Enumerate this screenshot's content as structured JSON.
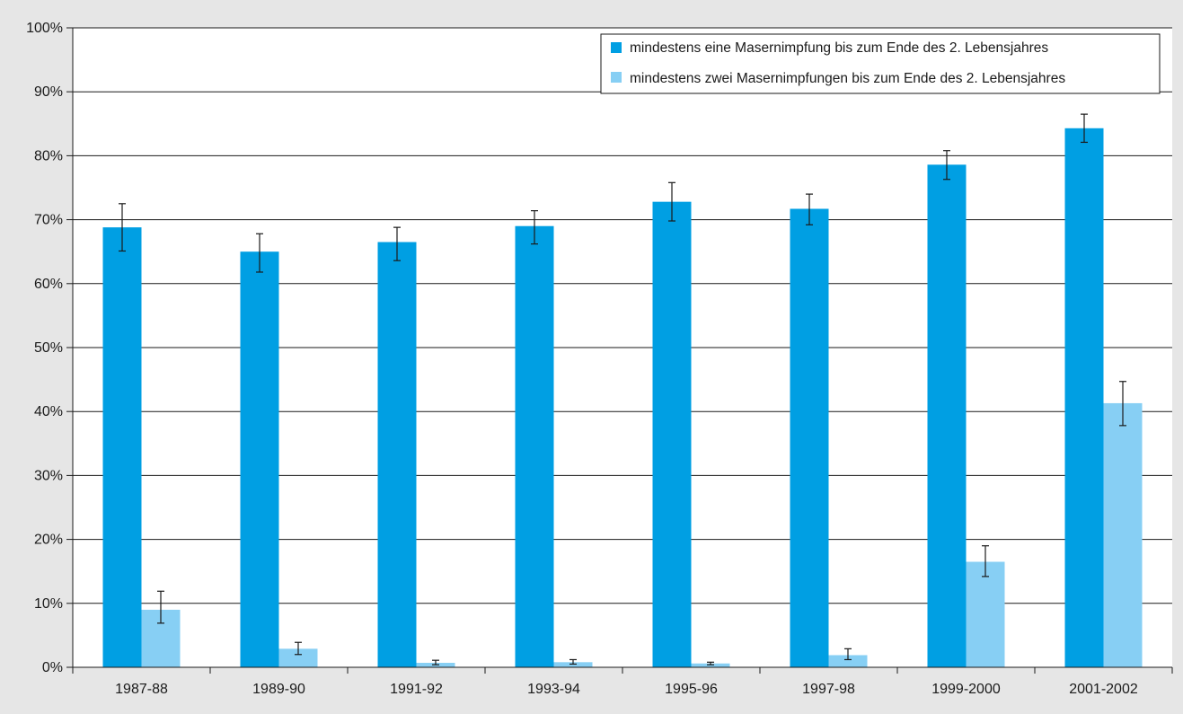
{
  "chart_data": {
    "type": "bar",
    "categories": [
      "1987-88",
      "1989-90",
      "1991-92",
      "1993-94",
      "1995-96",
      "1997-98",
      "1999-2000",
      "2001-2002"
    ],
    "series": [
      {
        "name": "mindestens eine Masernimpfung bis zum Ende des 2. Lebensjahres",
        "color": "#009fe3",
        "values": [
          68.8,
          65.0,
          66.5,
          69.0,
          72.8,
          71.7,
          78.6,
          84.3
        ],
        "error_low": [
          65.1,
          61.8,
          63.6,
          66.2,
          69.8,
          69.2,
          76.3,
          82.1
        ],
        "error_high": [
          72.5,
          67.8,
          68.8,
          71.4,
          75.8,
          74.0,
          80.8,
          86.5
        ]
      },
      {
        "name": "mindestens zwei Masernimpfungen bis zum Ende des 2. Lebensjahres",
        "color": "#87cff4",
        "values": [
          9.0,
          2.9,
          0.7,
          0.8,
          0.6,
          1.9,
          16.5,
          41.3
        ],
        "error_low": [
          6.9,
          2.0,
          0.4,
          0.5,
          0.4,
          1.2,
          14.2,
          37.8
        ],
        "error_high": [
          11.9,
          3.9,
          1.1,
          1.2,
          0.8,
          2.9,
          19.0,
          44.7
        ]
      }
    ],
    "yticks": [
      "0%",
      "10%",
      "20%",
      "30%",
      "40%",
      "50%",
      "60%",
      "70%",
      "80%",
      "90%",
      "100%"
    ],
    "ylim": [
      0,
      100
    ],
    "grid": true,
    "legend_position": "top-right",
    "title": "",
    "xlabel": "",
    "ylabel": ""
  }
}
